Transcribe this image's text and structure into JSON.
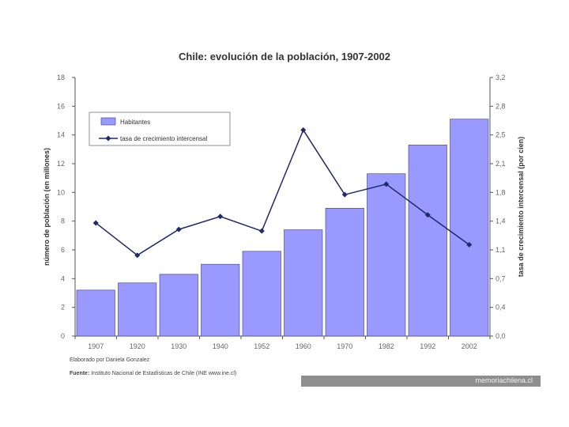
{
  "credit": "Elaborado por Daniela Gonzalez",
  "source_label": "Fuente:",
  "source_text": "Instituto Nacional de Estadísticas de Chile (INE www.ine.cl)",
  "watermark": "memoriachilena.cl",
  "colors": {
    "bar_fill": "#9999ff",
    "bar_stroke": "#3c3c6e",
    "line": "#1f2a6b",
    "axis": "#555555",
    "text": "#333333"
  },
  "chart_data": {
    "type": "bar",
    "title": "Chile: evolución de la población, 1907-2002",
    "categories": [
      "1907",
      "1920",
      "1930",
      "1940",
      "1952",
      "1960",
      "1970",
      "1982",
      "1992",
      "2002"
    ],
    "series": [
      {
        "name": "Habitantes",
        "type": "bar",
        "axis": "left",
        "values": [
          3.2,
          3.7,
          4.3,
          5.0,
          5.9,
          7.4,
          8.9,
          11.3,
          13.3,
          15.1
        ]
      },
      {
        "name": "tasa de crecimiento intercensal",
        "type": "line",
        "axis": "right",
        "values": [
          1.4,
          1.0,
          1.32,
          1.48,
          1.3,
          2.55,
          1.75,
          1.88,
          1.5,
          1.13
        ]
      }
    ],
    "ylabel": "número de población (en millones)",
    "y2label": "tasa de crecimiento intercensal (por cien)",
    "ylim": [
      0,
      18
    ],
    "yticks": [
      "0",
      "2",
      "4",
      "6",
      "8",
      "10",
      "12",
      "14",
      "16",
      "18"
    ],
    "y2lim": [
      0,
      3.2
    ],
    "y2ticks": [
      "0,0",
      "0,4",
      "0,7",
      "1,1",
      "1,4",
      "1,8",
      "2,1",
      "2,5",
      "2,8",
      "3,2"
    ],
    "legend": "top-left",
    "grid": false
  }
}
